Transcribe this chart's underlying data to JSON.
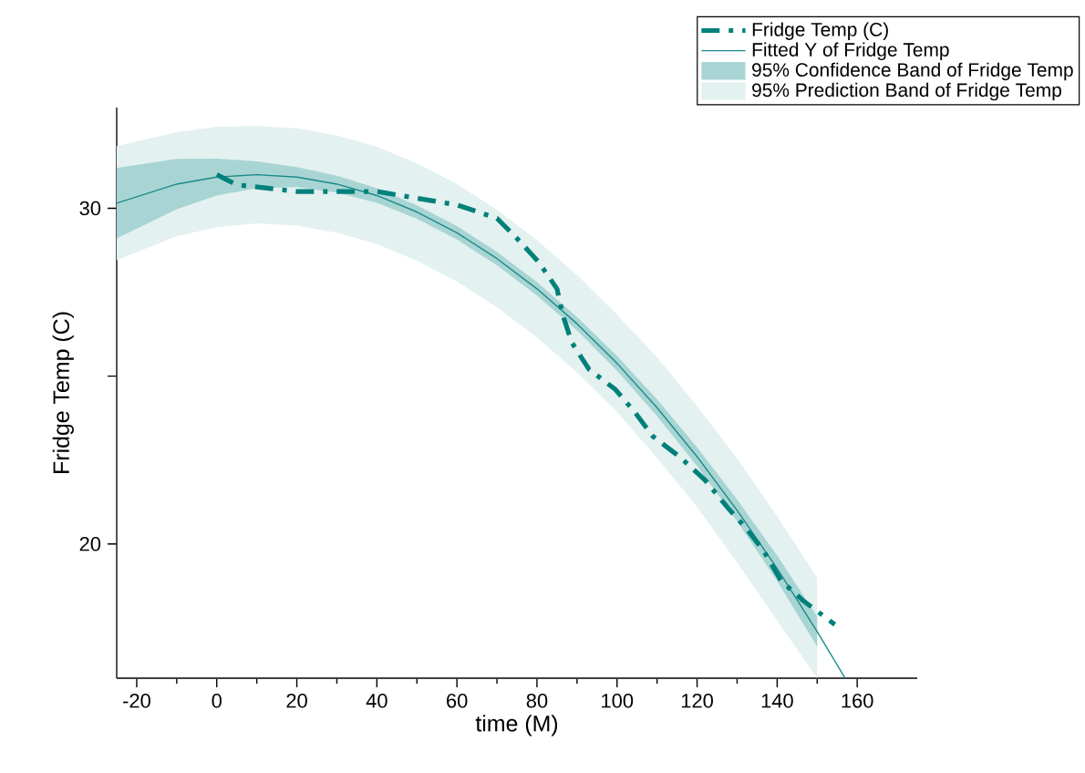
{
  "chart_data": {
    "type": "line",
    "xlabel": "time (M)",
    "ylabel": "Fridge Temp (C)",
    "xlim": [
      -25,
      175
    ],
    "ylim": [
      16,
      33
    ],
    "xticks": [
      -20,
      0,
      20,
      40,
      60,
      80,
      100,
      120,
      140,
      160
    ],
    "yticks": [
      20,
      {
        "value": 25,
        "label": null
      },
      30
    ],
    "legend": "top right",
    "grid": false,
    "series": [
      {
        "name": "Fridge Temp (C)",
        "color": "#00807a",
        "line_style": "dashed",
        "x": [
          0,
          5,
          20,
          40,
          60,
          70,
          75,
          80.4,
          85,
          86.5,
          88.7,
          93,
          99.6,
          104.6,
          109,
          115.6,
          122,
          127.5,
          132,
          136.6,
          141,
          146.6,
          154.4
        ],
        "values": [
          31.0,
          30.7,
          30.5,
          30.5,
          30.1,
          29.7,
          29.1,
          28.4,
          27.6,
          26.8,
          26.0,
          25.2,
          24.6,
          23.9,
          23.2,
          22.6,
          21.9,
          21.1,
          20.5,
          19.8,
          18.9,
          18.3,
          17.6
        ]
      },
      {
        "name": "Fitted Y of Fridge Temp",
        "color": "#1a8a8a",
        "line_style": "solid",
        "x": [
          -25,
          -10,
          0,
          10,
          20,
          30,
          40,
          50,
          60,
          70,
          80,
          90,
          100,
          110,
          120,
          130,
          140,
          150,
          157
        ],
        "values": [
          30.15,
          30.72,
          30.93,
          31.0,
          30.93,
          30.72,
          30.38,
          29.89,
          29.27,
          28.5,
          27.6,
          26.56,
          25.38,
          24.06,
          22.6,
          21.0,
          19.27,
          17.39,
          16.0
        ]
      },
      {
        "name": "95% Confidence Band of Fridge Temp",
        "type": "line",
        "color": "#a8d5d3",
        "x": [
          -25,
          -10,
          0,
          10,
          20,
          30,
          40,
          50,
          60,
          70,
          80,
          90,
          100,
          110,
          120,
          130,
          140,
          150
        ],
        "values": [
          null,
          null,
          null,
          null,
          null,
          null,
          null,
          null,
          null,
          null,
          null,
          null,
          null,
          null,
          null,
          null,
          null,
          null
        ],
        "lower": [
          29.1,
          29.97,
          30.38,
          30.6,
          30.63,
          30.47,
          30.16,
          29.69,
          29.07,
          28.3,
          27.4,
          26.36,
          25.16,
          23.81,
          22.32,
          20.68,
          18.89,
          16.94
        ],
        "upper": [
          31.2,
          31.47,
          31.48,
          31.4,
          31.23,
          30.97,
          30.6,
          30.09,
          29.47,
          28.7,
          27.8,
          26.76,
          25.6,
          24.31,
          22.88,
          21.32,
          19.65,
          17.84
        ]
      },
      {
        "name": "95% Prediction Band of Fridge Temp",
        "type": "line",
        "color": "#e3f1f0",
        "x": [
          -25,
          -10,
          0,
          10,
          20,
          30,
          40,
          50,
          60,
          70,
          80,
          90,
          100,
          110,
          120,
          130,
          140,
          150
        ],
        "values": [
          null,
          null,
          null,
          null,
          null,
          null,
          null,
          null,
          null,
          null,
          null,
          null,
          null,
          null,
          null,
          null,
          null,
          null
        ],
        "lower": [
          28.45,
          29.17,
          29.43,
          29.55,
          29.48,
          29.27,
          28.93,
          28.44,
          27.82,
          27.05,
          26.15,
          25.11,
          23.93,
          22.56,
          21.1,
          19.45,
          17.72,
          16.0
        ],
        "upper": [
          31.85,
          32.27,
          32.43,
          32.45,
          32.38,
          32.17,
          31.83,
          31.34,
          30.72,
          29.95,
          29.05,
          28.01,
          26.83,
          25.56,
          24.1,
          22.55,
          20.82,
          18.99
        ]
      }
    ]
  }
}
